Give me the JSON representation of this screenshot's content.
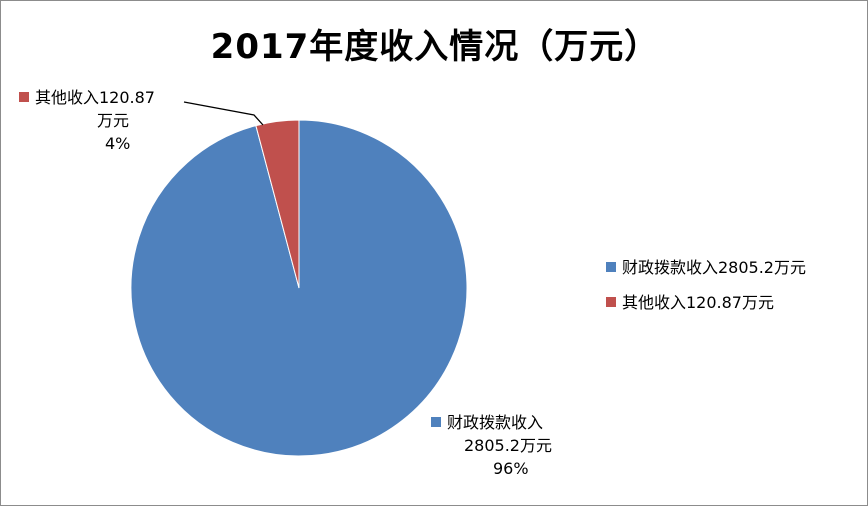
{
  "chart_data": {
    "type": "pie",
    "title": "2017年度收入情况（万元）",
    "slices": [
      {
        "name": "财政拨款收入2805.2万元",
        "value": 2805.2,
        "percent_label": "96%",
        "color": "#4F81BD",
        "label_lines": [
          "财政拨款收入",
          "2805.2万元",
          "96%"
        ]
      },
      {
        "name": "其他收入120.87万元",
        "value": 120.87,
        "percent_label": "4%",
        "color": "#C0504D",
        "label_lines": [
          "其他收入120.87",
          "万元",
          "4%"
        ]
      }
    ],
    "legend": {
      "position": "right",
      "items": [
        "财政拨款收入2805.2万元",
        "其他收入120.87万元"
      ]
    }
  }
}
